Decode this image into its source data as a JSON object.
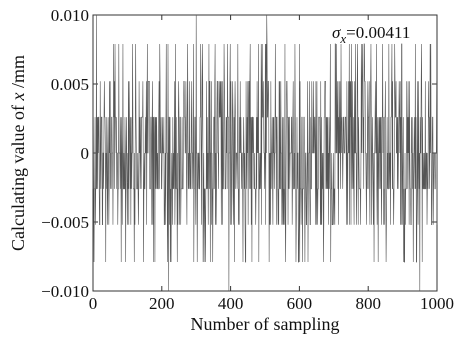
{
  "chart_data": {
    "type": "line",
    "xlabel": "Number of sampling",
    "ylabel_parts": [
      "Calculating value of ",
      "x",
      " /mm"
    ],
    "annotation": {
      "symbol": "σ",
      "subscript": "x",
      "text": "=0.00411"
    },
    "xlim": [
      0,
      1000
    ],
    "ylim": [
      -0.01,
      0.01
    ],
    "xticks": [
      0,
      200,
      400,
      600,
      800,
      1000
    ],
    "xtick_labels": [
      "0",
      "200",
      "400",
      "600",
      "800",
      "1000"
    ],
    "yticks": [
      0.01,
      0.005,
      0,
      -0.005,
      -0.01
    ],
    "ytick_labels": [
      "0.010",
      "0.005",
      "0",
      "−0.005",
      "−0.010"
    ],
    "grid": false,
    "series": [
      {
        "n_points": 1000,
        "levels": [
          0.0079,
          0.0052,
          0.0026,
          0,
          -0.0026,
          -0.0052,
          -0.0079
        ],
        "spikes": [
          {
            "x": 10,
            "y": 0.01
          },
          {
            "x": 300,
            "y": 0.01
          },
          {
            "x": 505,
            "y": 0.01
          },
          {
            "x": 220,
            "y": -0.01
          },
          {
            "x": 395,
            "y": -0.01
          },
          {
            "x": 950,
            "y": -0.01
          }
        ],
        "color": "#555555"
      }
    ]
  }
}
